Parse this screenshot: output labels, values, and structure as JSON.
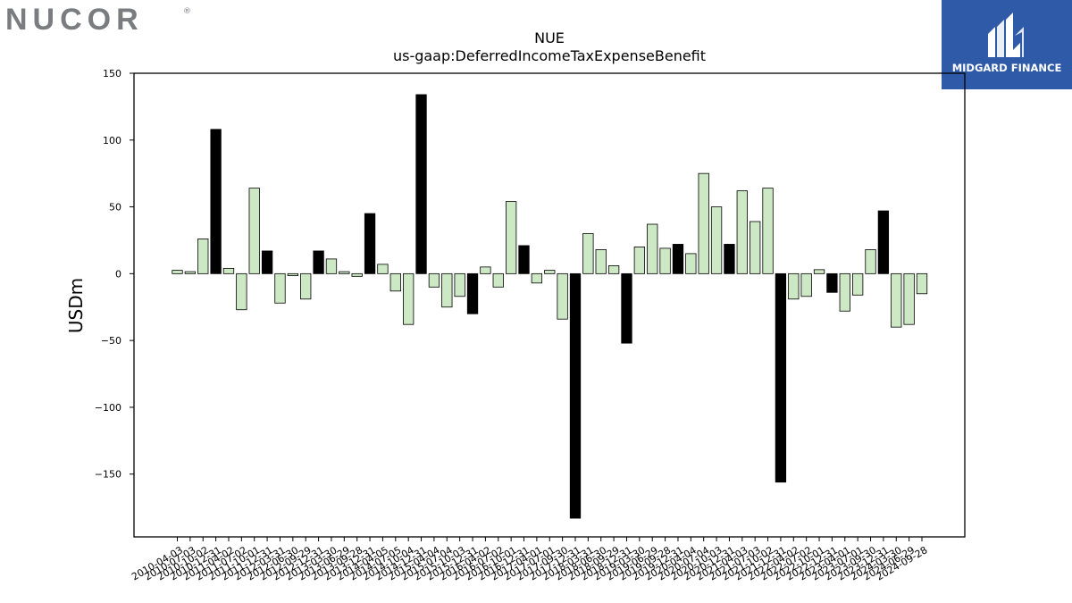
{
  "branding": {
    "company_logo_text": "NUCOR",
    "partner_logo_text": "MIDGARD FINANCE",
    "company_logo_color": "#7a7c80",
    "partner_logo_bg": "#2e5aa8"
  },
  "chart_data": {
    "type": "bar",
    "title": "NUE",
    "subtitle": "us-gaap:DeferredIncomeTaxExpenseBenefit",
    "xlabel": "",
    "ylabel": "USDm",
    "ylim": [
      -197,
      150
    ],
    "yticks": [
      150,
      100,
      50,
      0,
      -50,
      -100,
      -150
    ],
    "grid": false,
    "legend": "none",
    "colors": {
      "quarterly": "#cce8c4",
      "annual": "#000000",
      "edge": "#000000"
    },
    "categories": [
      "2010-04-03",
      "2010-07-03",
      "2010-10-02",
      "2010-12-31",
      "2011-04-02",
      "2011-07-02",
      "2011-10-01",
      "2011-12-31",
      "2012-03-31",
      "2012-06-30",
      "2012-09-29",
      "2012-12-31",
      "2013-03-30",
      "2013-06-29",
      "2013-09-28",
      "2013-12-31",
      "2014-04-05",
      "2014-07-05",
      "2014-10-04",
      "2014-12-31",
      "2015-04-04",
      "2015-07-04",
      "2015-10-03",
      "2015-12-31",
      "2016-04-02",
      "2016-07-02",
      "2016-10-01",
      "2016-12-31",
      "2017-04-01",
      "2017-07-01",
      "2017-09-30",
      "2017-12-31",
      "2018-03-31",
      "2018-06-30",
      "2018-09-29",
      "2018-12-31",
      "2019-03-30",
      "2019-06-29",
      "2019-09-28",
      "2019-12-31",
      "2020-04-04",
      "2020-07-04",
      "2020-10-03",
      "2020-12-31",
      "2021-04-03",
      "2021-07-03",
      "2021-10-02",
      "2021-12-31",
      "2022-04-02",
      "2022-07-02",
      "2022-10-01",
      "2022-12-31",
      "2023-04-01",
      "2023-07-01",
      "2023-09-30",
      "2023-12-31",
      "2024-03-30",
      "2024-06-29",
      "2024-09-28"
    ],
    "values": [
      2.5,
      1.5,
      26,
      108,
      4,
      -27,
      64,
      17,
      -22,
      -1.5,
      -19,
      17,
      11,
      1.5,
      -2,
      45,
      7,
      -13,
      -38,
      134,
      -10,
      -25,
      -17,
      -30,
      5,
      -10,
      54,
      21,
      -7,
      2.5,
      -34,
      -183,
      30,
      18,
      6,
      -52,
      20,
      37,
      19,
      22,
      15,
      75,
      50,
      22,
      62,
      39,
      64,
      -156,
      -19,
      -17,
      3,
      -14,
      -28,
      -16,
      18,
      47,
      -40,
      -38,
      -15
    ],
    "annual": [
      false,
      false,
      false,
      true,
      false,
      false,
      false,
      true,
      false,
      false,
      false,
      true,
      false,
      false,
      false,
      true,
      false,
      false,
      false,
      true,
      false,
      false,
      false,
      true,
      false,
      false,
      false,
      true,
      false,
      false,
      false,
      true,
      false,
      false,
      false,
      true,
      false,
      false,
      false,
      true,
      false,
      false,
      false,
      true,
      false,
      false,
      false,
      true,
      false,
      false,
      false,
      true,
      false,
      false,
      false,
      true,
      false,
      false,
      false
    ]
  }
}
